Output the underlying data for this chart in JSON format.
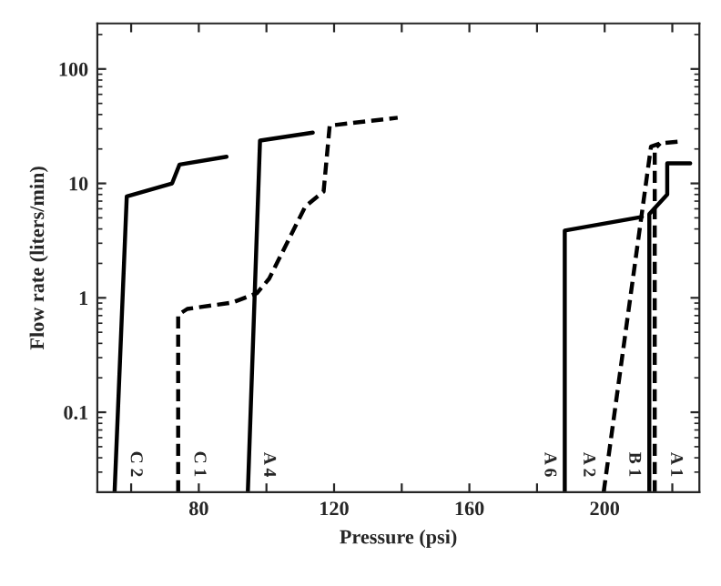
{
  "chart_data": {
    "type": "line",
    "xlabel": "Pressure (psi)",
    "ylabel": "Flow rate (liters/min)",
    "log": "y",
    "xlim": [
      50,
      228
    ],
    "ylim": [
      0.02,
      250
    ],
    "xticks": [
      {
        "value": 60,
        "label": null
      },
      80,
      {
        "value": 100,
        "label": null
      },
      120,
      {
        "value": 140,
        "label": null
      },
      160,
      {
        "value": 180,
        "label": null
      },
      200,
      {
        "value": 220,
        "label": null
      }
    ],
    "yticks": [
      0.1,
      1,
      10,
      100
    ],
    "grid": false,
    "legend": false,
    "series": [
      {
        "name": "C 2",
        "color": "#000000",
        "line_style": "solid",
        "x": [
          55.1,
          58.7,
          72.1,
          74.3,
          88.2
        ],
        "values": [
          0.02,
          7.7,
          10,
          14.6,
          17.1
        ]
      },
      {
        "name": "C 1",
        "color": "#000000",
        "line_style": "dashed",
        "x": [
          73.9,
          73.9,
          76.6,
          90,
          97.2,
          100.8,
          111.5,
          116.9,
          118.7,
          138.8
        ],
        "values": [
          0.02,
          0.71,
          0.8,
          0.91,
          1.1,
          1.47,
          6.3,
          8.5,
          32,
          37.5
        ]
      },
      {
        "name": "A 4",
        "color": "#000000",
        "line_style": "solid",
        "x": [
          94.5,
          98.1,
          113.7
        ],
        "values": [
          0.02,
          23.7,
          27.8
        ]
      },
      {
        "name": "A 6",
        "color": "#000000",
        "line_style": "solid",
        "x": [
          188.2,
          188.2,
          211
        ],
        "values": [
          0.02,
          3.87,
          5.1
        ]
      },
      {
        "name": "A 2",
        "color": "#000000",
        "line_style": "dashed",
        "x": [
          199.7,
          213.7,
          216.4,
          221.8
        ],
        "values": [
          0.02,
          21,
          22.4,
          23.2
        ]
      },
      {
        "name": "A 1",
        "color": "#000000",
        "line_style": "dashed",
        "x": [
          214.8,
          214.8,
          216.4
        ],
        "values": [
          0.02,
          20,
          22.4
        ]
      },
      {
        "name": "B 1",
        "color": "#000000",
        "line_style": "solid",
        "x": [
          213.2,
          213.2,
          218.5,
          218.5,
          225.3
        ],
        "values": [
          0.02,
          5.4,
          8.0,
          15,
          15
        ]
      }
    ]
  }
}
